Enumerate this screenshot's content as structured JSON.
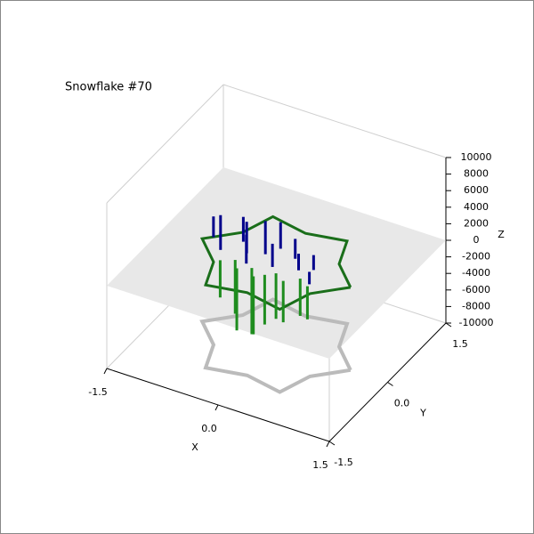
{
  "chart_data": {
    "type": "line3d",
    "title": "Snowflake #70",
    "xlabel": "X",
    "ylabel": "Y",
    "zlabel": "Z",
    "xlim": [
      -1.5,
      1.5
    ],
    "ylim": [
      -1.5,
      1.5
    ],
    "zlim": [
      -10000,
      10000
    ],
    "xticks": [
      -1.5,
      {
        "value": 0,
        "label": "0.0"
      },
      1.5
    ],
    "yticks": [
      -1.5,
      {
        "value": 0,
        "label": "0.0"
      },
      1.5
    ],
    "zticks": [
      -10000,
      -8000,
      -6000,
      -4000,
      -2000,
      0,
      2000,
      4000,
      6000,
      8000,
      10000
    ],
    "plane_color": "#e8e8e8",
    "series": [
      {
        "style": "line",
        "color": "#1a6e1a",
        "x": [
          1.0,
          0.65,
          0.5,
          0.0,
          -0.5,
          -0.65,
          -1.0,
          -0.65,
          -0.5,
          0.0,
          0.5,
          0.65,
          1.0
        ],
        "y": [
          0.0,
          0.375,
          0.866,
          0.75,
          0.866,
          0.375,
          0.0,
          -0.375,
          -0.866,
          -0.75,
          -0.866,
          -0.375,
          0.0
        ],
        "z": [
          0,
          0,
          0,
          0,
          0,
          0,
          0,
          0,
          0,
          0,
          0,
          0,
          0
        ]
      },
      {
        "style": "stems",
        "color": "#00008b",
        "x": [
          -0.9,
          -0.7,
          -0.55,
          -0.4,
          -0.3,
          -0.2,
          -0.1,
          0.0,
          0.15,
          0.3,
          0.45,
          0.55
        ],
        "y": [
          0.1,
          -0.1,
          0.2,
          0.0,
          -0.2,
          0.1,
          0.3,
          -0.1,
          0.2,
          0.0,
          0.1,
          -0.2
        ],
        "z": [
          2500,
          4200,
          3000,
          3800,
          3500,
          4000,
          3200,
          2800,
          2400,
          2000,
          1800,
          1500
        ]
      },
      {
        "style": "stems",
        "color": "#1e8c1e",
        "x": [
          -0.6,
          -0.45,
          -0.35,
          -0.2,
          -0.1,
          0.0,
          0.1,
          0.25,
          0.4,
          0.55
        ],
        "y": [
          -0.3,
          -0.2,
          -0.35,
          -0.25,
          -0.4,
          -0.3,
          -0.2,
          -0.3,
          -0.15,
          -0.25
        ],
        "z": [
          -4500,
          -6500,
          -7500,
          -8000,
          -7000,
          -6000,
          -5500,
          -5000,
          -4500,
          -4000
        ]
      }
    ]
  }
}
